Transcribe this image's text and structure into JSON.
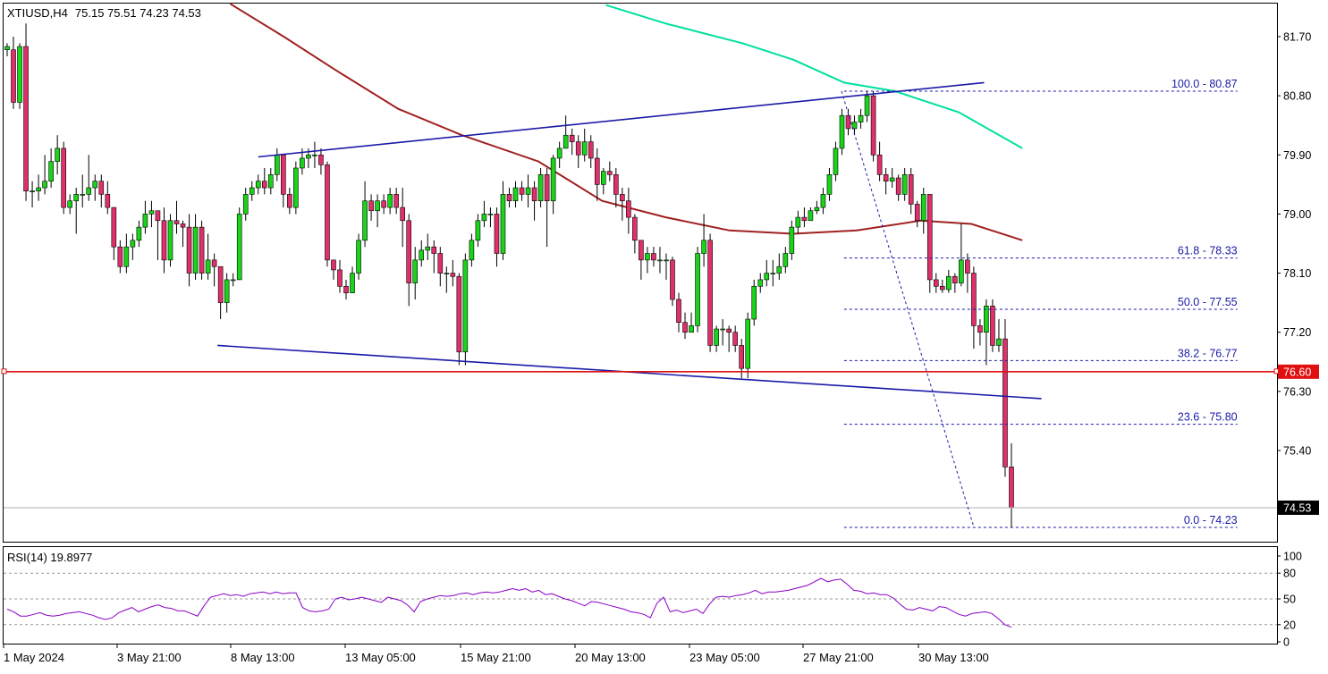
{
  "header": {
    "symbol": "XTIUSD,H4",
    "ohlc": "75.15 75.51 74.23 74.53"
  },
  "colors": {
    "bull": "#19d419",
    "bear": "#e0306a",
    "wick": "#000000",
    "ma_slow": "#00e0a0",
    "ma_fast": "#a02020",
    "trendline": "#1a1aa8",
    "support": "#e01010",
    "fib": "#1a1aa8",
    "rsi": "#8a00c8",
    "price_box": "#e01010",
    "frame": "#000000"
  },
  "chart_data": [
    {
      "type": "candlestick",
      "symbol": "XTIUSD",
      "timeframe": "H4",
      "ylim": [
        73.95,
        82.2
      ],
      "y_ticks": [
        "81.70",
        "80.80",
        "79.90",
        "79.00",
        "78.10",
        "77.20",
        "76.30",
        "75.40"
      ],
      "x_ticks": [
        "1 May 2024",
        "3 May 21:00",
        "8 May 13:00",
        "13 May 05:00",
        "15 May 21:00",
        "20 May 13:00",
        "23 May 05:00",
        "27 May 21:00",
        "30 May 13:00"
      ],
      "last_price": "74.53",
      "support_level": "76.60",
      "candles": [
        [
          81.5,
          81.55,
          81.4,
          81.6
        ],
        [
          81.5,
          80.7,
          80.6,
          81.7
        ],
        [
          80.7,
          81.55,
          80.6,
          81.6
        ],
        [
          81.55,
          79.35,
          79.2,
          81.9
        ],
        [
          79.35,
          79.35,
          79.1,
          79.5
        ],
        [
          79.35,
          79.4,
          79.2,
          79.6
        ],
        [
          79.4,
          79.5,
          79.3,
          79.9
        ],
        [
          79.5,
          79.8,
          79.4,
          80.0
        ],
        [
          79.8,
          80.0,
          79.6,
          80.2
        ],
        [
          80.0,
          79.1,
          79.0,
          80.1
        ],
        [
          79.1,
          79.2,
          79.0,
          79.3
        ],
        [
          79.2,
          79.3,
          78.7,
          79.4
        ],
        [
          79.3,
          79.3,
          79.1,
          79.6
        ],
        [
          79.3,
          79.4,
          79.2,
          79.9
        ],
        [
          79.4,
          79.5,
          79.2,
          79.6
        ],
        [
          79.5,
          79.3,
          79.1,
          79.6
        ],
        [
          79.3,
          79.1,
          79.0,
          79.5
        ],
        [
          79.1,
          78.5,
          78.3,
          79.1
        ],
        [
          78.5,
          78.2,
          78.1,
          78.6
        ],
        [
          78.2,
          78.5,
          78.1,
          78.7
        ],
        [
          78.5,
          78.6,
          78.3,
          78.7
        ],
        [
          78.6,
          78.8,
          78.5,
          78.9
        ],
        [
          78.8,
          79.0,
          78.7,
          79.2
        ],
        [
          79.0,
          79.05,
          78.8,
          79.2
        ],
        [
          79.05,
          78.9,
          78.3,
          79.0
        ],
        [
          78.9,
          78.3,
          78.1,
          79.1
        ],
        [
          78.3,
          78.9,
          78.2,
          79.0
        ],
        [
          78.9,
          78.85,
          78.7,
          79.2
        ],
        [
          78.85,
          78.8,
          78.5,
          78.9
        ],
        [
          78.8,
          78.1,
          77.9,
          79.0
        ],
        [
          78.1,
          78.8,
          78.0,
          79.0
        ],
        [
          78.8,
          78.1,
          78.0,
          78.9
        ],
        [
          78.1,
          78.3,
          78.0,
          78.7
        ],
        [
          78.3,
          78.2,
          77.9,
          78.4
        ],
        [
          78.2,
          77.65,
          77.4,
          78.2
        ],
        [
          77.65,
          78.0,
          77.5,
          78.1
        ],
        [
          78.0,
          78.0,
          77.9,
          78.1
        ],
        [
          78.0,
          79.0,
          78.0,
          79.1
        ],
        [
          79.0,
          79.3,
          78.9,
          79.4
        ],
        [
          79.3,
          79.4,
          79.2,
          79.5
        ],
        [
          79.4,
          79.5,
          79.3,
          79.6
        ],
        [
          79.5,
          79.4,
          79.3,
          79.7
        ],
        [
          79.4,
          79.6,
          79.3,
          79.7
        ],
        [
          79.6,
          79.9,
          79.5,
          80.0
        ],
        [
          79.9,
          79.3,
          79.1,
          79.9
        ],
        [
          79.3,
          79.1,
          79.0,
          79.4
        ],
        [
          79.1,
          79.7,
          79.0,
          79.8
        ],
        [
          79.7,
          79.85,
          79.6,
          80.0
        ],
        [
          79.85,
          79.9,
          79.7,
          80.0
        ],
        [
          79.9,
          79.9,
          79.7,
          80.1
        ],
        [
          79.9,
          79.75,
          79.6,
          80.0
        ],
        [
          79.75,
          78.3,
          78.2,
          79.8
        ],
        [
          78.3,
          78.15,
          78.0,
          78.3
        ],
        [
          78.15,
          77.9,
          77.8,
          78.3
        ],
        [
          77.9,
          77.8,
          77.7,
          78.0
        ],
        [
          77.8,
          78.1,
          77.8,
          78.2
        ],
        [
          78.1,
          78.6,
          78.0,
          78.7
        ],
        [
          78.6,
          79.2,
          78.5,
          79.5
        ],
        [
          79.2,
          79.05,
          78.9,
          79.3
        ],
        [
          79.05,
          79.2,
          78.8,
          79.3
        ],
        [
          79.2,
          79.1,
          79.0,
          79.3
        ],
        [
          79.1,
          79.3,
          79.0,
          79.4
        ],
        [
          79.3,
          79.1,
          79.0,
          79.4
        ],
        [
          79.1,
          78.9,
          78.5,
          79.4
        ],
        [
          78.9,
          77.95,
          77.6,
          79.0
        ],
        [
          77.95,
          78.3,
          77.7,
          78.5
        ],
        [
          78.3,
          78.45,
          78.2,
          78.6
        ],
        [
          78.45,
          78.5,
          78.3,
          78.7
        ],
        [
          78.5,
          78.4,
          78.1,
          78.6
        ],
        [
          78.4,
          78.1,
          77.9,
          78.5
        ],
        [
          78.1,
          78.1,
          77.8,
          78.2
        ],
        [
          78.1,
          78.05,
          77.9,
          78.3
        ],
        [
          78.05,
          76.9,
          76.7,
          78.1
        ],
        [
          76.9,
          78.3,
          76.7,
          78.4
        ],
        [
          78.3,
          78.6,
          78.2,
          78.7
        ],
        [
          78.6,
          78.9,
          78.5,
          79.0
        ],
        [
          78.9,
          79.0,
          78.8,
          79.2
        ],
        [
          79.0,
          79.0,
          78.8,
          79.1
        ],
        [
          79.0,
          78.4,
          78.2,
          79.1
        ],
        [
          78.4,
          79.3,
          78.3,
          79.5
        ],
        [
          79.3,
          79.2,
          79.1,
          79.4
        ],
        [
          79.2,
          79.4,
          79.1,
          79.5
        ],
        [
          79.4,
          79.3,
          79.2,
          79.5
        ],
        [
          79.3,
          79.4,
          79.1,
          79.6
        ],
        [
          79.4,
          79.2,
          78.9,
          79.5
        ],
        [
          79.2,
          79.6,
          79.1,
          79.7
        ],
        [
          79.6,
          79.2,
          78.5,
          79.7
        ],
        [
          79.2,
          79.85,
          79.0,
          79.9
        ],
        [
          79.85,
          80.0,
          79.7,
          80.1
        ],
        [
          80.0,
          80.2,
          80.0,
          80.5
        ],
        [
          80.2,
          80.1,
          79.9,
          80.3
        ],
        [
          80.1,
          79.9,
          79.7,
          80.2
        ],
        [
          79.9,
          80.1,
          79.8,
          80.3
        ],
        [
          80.1,
          79.85,
          79.7,
          80.2
        ],
        [
          79.85,
          79.45,
          79.2,
          80.0
        ],
        [
          79.45,
          79.65,
          79.3,
          79.7
        ],
        [
          79.65,
          79.6,
          79.5,
          79.8
        ],
        [
          79.6,
          79.3,
          79.1,
          79.7
        ],
        [
          79.3,
          79.2,
          78.9,
          79.4
        ],
        [
          79.2,
          78.95,
          78.7,
          79.4
        ],
        [
          78.95,
          78.6,
          78.4,
          79.0
        ],
        [
          78.6,
          78.3,
          78.0,
          78.6
        ],
        [
          78.3,
          78.4,
          78.1,
          78.5
        ],
        [
          78.4,
          78.3,
          78.2,
          78.5
        ],
        [
          78.3,
          78.3,
          78.1,
          78.5
        ],
        [
          78.3,
          78.3,
          78.0,
          78.4
        ],
        [
          78.3,
          77.7,
          77.6,
          78.35
        ],
        [
          77.7,
          77.35,
          77.2,
          77.8
        ],
        [
          77.35,
          77.2,
          77.1,
          77.5
        ],
        [
          77.2,
          77.3,
          77.2,
          77.5
        ],
        [
          77.3,
          78.4,
          77.2,
          78.5
        ],
        [
          78.4,
          78.6,
          78.2,
          79.0
        ],
        [
          78.6,
          77.0,
          76.9,
          78.7
        ],
        [
          77.0,
          77.25,
          76.9,
          77.3
        ],
        [
          77.25,
          77.25,
          77.0,
          77.4
        ],
        [
          77.25,
          77.2,
          76.9,
          77.3
        ],
        [
          77.2,
          77.0,
          76.9,
          77.3
        ],
        [
          77.0,
          76.65,
          76.5,
          77.1
        ],
        [
          76.65,
          77.4,
          76.5,
          77.5
        ],
        [
          77.4,
          77.9,
          77.3,
          78.0
        ],
        [
          77.9,
          78.0,
          77.8,
          78.1
        ],
        [
          78.0,
          78.1,
          77.9,
          78.3
        ],
        [
          78.1,
          78.1,
          77.9,
          78.3
        ],
        [
          78.1,
          78.2,
          78.0,
          78.4
        ],
        [
          78.2,
          78.4,
          78.1,
          78.5
        ],
        [
          78.4,
          78.8,
          78.3,
          78.9
        ],
        [
          78.8,
          78.95,
          78.7,
          79.05
        ],
        [
          78.95,
          78.9,
          78.8,
          79.1
        ],
        [
          78.9,
          79.05,
          78.9,
          79.1
        ],
        [
          79.05,
          79.1,
          79.0,
          79.2
        ],
        [
          79.1,
          79.3,
          79.0,
          79.4
        ],
        [
          79.3,
          79.6,
          79.2,
          79.7
        ],
        [
          79.6,
          80.0,
          79.5,
          80.1
        ],
        [
          80.0,
          80.5,
          79.9,
          80.6
        ],
        [
          80.5,
          80.3,
          80.2,
          80.6
        ],
        [
          80.3,
          80.4,
          80.2,
          80.5
        ],
        [
          80.4,
          80.5,
          80.3,
          80.6
        ],
        [
          80.5,
          80.8,
          80.4,
          80.87
        ],
        [
          80.8,
          79.9,
          79.8,
          80.87
        ],
        [
          79.9,
          79.6,
          79.5,
          80.1
        ],
        [
          79.6,
          79.5,
          79.3,
          79.7
        ],
        [
          79.5,
          79.55,
          79.4,
          79.7
        ],
        [
          79.55,
          79.3,
          79.2,
          79.6
        ],
        [
          79.3,
          79.6,
          79.2,
          79.7
        ],
        [
          79.6,
          79.15,
          79.0,
          79.7
        ],
        [
          79.15,
          78.9,
          78.8,
          79.2
        ],
        [
          78.9,
          79.3,
          78.7,
          79.4
        ],
        [
          79.3,
          78.0,
          77.8,
          79.3
        ],
        [
          78.0,
          77.9,
          77.8,
          78.1
        ],
        [
          77.9,
          77.85,
          77.8,
          78.0
        ],
        [
          77.85,
          78.05,
          77.8,
          78.15
        ],
        [
          78.05,
          77.95,
          77.8,
          78.1
        ],
        [
          77.95,
          78.3,
          77.9,
          78.85
        ],
        [
          78.3,
          78.1,
          77.8,
          78.4
        ],
        [
          78.1,
          77.3,
          76.95,
          78.2
        ],
        [
          77.3,
          77.2,
          77.0,
          77.4
        ],
        [
          77.2,
          77.6,
          76.7,
          77.7
        ],
        [
          77.6,
          77.0,
          76.9,
          77.7
        ],
        [
          77.0,
          77.1,
          76.9,
          77.4
        ],
        [
          77.1,
          75.15,
          75.0,
          77.4
        ],
        [
          75.15,
          74.53,
          74.23,
          75.51
        ]
      ],
      "ma_slow": [
        [
          0.473,
          82.18
        ],
        [
          0.52,
          81.9
        ],
        [
          0.58,
          81.6
        ],
        [
          0.62,
          81.35
        ],
        [
          0.66,
          81.0
        ],
        [
          0.7,
          80.87
        ],
        [
          0.75,
          80.55
        ],
        [
          0.8,
          80.0
        ]
      ],
      "ma_fast": [
        [
          0.178,
          82.2
        ],
        [
          0.22,
          81.7
        ],
        [
          0.26,
          81.2
        ],
        [
          0.31,
          80.6
        ],
        [
          0.36,
          80.2
        ],
        [
          0.42,
          79.8
        ],
        [
          0.47,
          79.2
        ],
        [
          0.52,
          78.95
        ],
        [
          0.57,
          78.75
        ],
        [
          0.62,
          78.7
        ],
        [
          0.67,
          78.75
        ],
        [
          0.72,
          78.9
        ],
        [
          0.76,
          78.85
        ],
        [
          0.8,
          78.6
        ]
      ],
      "trendlines": [
        {
          "from": [
            0.2,
            79.87
          ],
          "to": [
            0.77,
            81.0
          ]
        },
        {
          "from": [
            0.168,
            77.0
          ],
          "to": [
            0.815,
            76.19
          ]
        }
      ],
      "fib_swing": {
        "from": [
          0.658,
          80.87
        ],
        "to": [
          0.762,
          74.23
        ]
      },
      "fibonacci": [
        {
          "label": "100.0 - 80.87",
          "value": 80.87
        },
        {
          "label": "61.8 - 78.33",
          "value": 78.33
        },
        {
          "label": "50.0 - 77.55",
          "value": 77.55
        },
        {
          "label": "38.2 - 76.77",
          "value": 76.77
        },
        {
          "label": "23.6 - 75.80",
          "value": 75.8
        },
        {
          "label": "0.0 - 74.23",
          "value": 74.23
        }
      ],
      "fib_x_range": [
        0.66,
        0.959
      ]
    },
    {
      "type": "line",
      "indicator": "RSI(14)",
      "title": "RSI(14) 19.8977",
      "ylim": [
        0,
        100
      ],
      "y_ticks": [
        "100",
        "80",
        "50",
        "20",
        "0"
      ],
      "levels": [
        80,
        50,
        20
      ],
      "values": [
        38,
        35,
        30,
        30,
        32,
        34,
        31,
        30,
        31,
        33,
        34,
        35,
        33,
        31,
        28,
        26,
        28,
        34,
        37,
        40,
        35,
        38,
        41,
        43,
        40,
        39,
        36,
        36,
        33,
        30,
        42,
        52,
        54,
        56,
        54,
        55,
        53,
        56,
        57,
        58,
        56,
        58,
        56,
        57,
        57,
        40,
        36,
        35,
        36,
        38,
        50,
        52,
        49,
        50,
        52,
        50,
        48,
        46,
        52,
        50,
        48,
        43,
        35,
        47,
        50,
        52,
        54,
        53,
        54,
        56,
        57,
        55,
        57,
        58,
        57,
        58,
        60,
        62,
        60,
        62,
        58,
        60,
        55,
        56,
        53,
        50,
        48,
        45,
        42,
        47,
        46,
        44,
        42,
        40,
        38,
        35,
        34,
        32,
        28,
        45,
        52,
        35,
        37,
        34,
        36,
        38,
        33,
        44,
        52,
        53,
        52,
        54,
        55,
        57,
        60,
        56,
        58,
        58,
        59,
        60,
        62,
        64,
        66,
        70,
        74,
        70,
        72,
        73,
        67,
        60,
        59,
        56,
        57,
        55,
        55,
        51,
        44,
        38,
        37,
        40,
        38,
        36,
        41,
        40,
        36,
        32,
        30,
        33,
        34,
        35,
        33,
        27,
        20,
        17
      ]
    }
  ]
}
